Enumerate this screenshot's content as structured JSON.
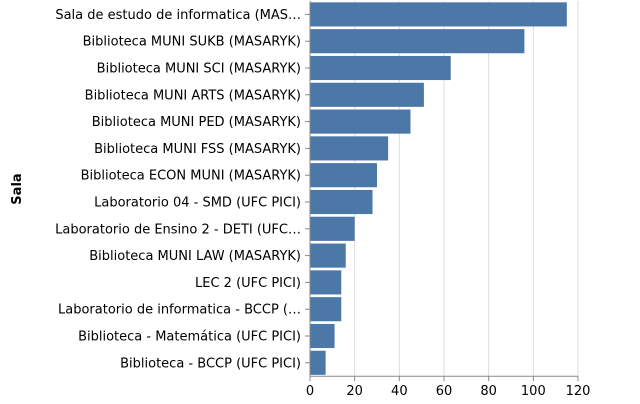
{
  "chart_data": {
    "type": "bar",
    "orientation": "horizontal",
    "ylabel": "Sala",
    "xlabel": "",
    "xlim": [
      0,
      120
    ],
    "x_ticks": [
      0,
      20,
      40,
      60,
      80,
      100,
      120
    ],
    "grid": true,
    "bar_color": "#4c78a8",
    "categories": [
      "Sala de estudo de informatica (MAS…",
      "Biblioteca MUNI SUKB (MASARYK)",
      "Biblioteca MUNI SCI (MASARYK)",
      "Biblioteca MUNI ARTS (MASARYK)",
      "Biblioteca MUNI PED (MASARYK)",
      "Biblioteca MUNI FSS (MASARYK)",
      "Biblioteca ECON MUNI (MASARYK)",
      "Laboratorio 04 - SMD (UFC PICI)",
      "Laboratorio de Ensino 2 - DETI (UFC…",
      "Biblioteca MUNI LAW (MASARYK)",
      "LEC 2 (UFC PICI)",
      "Laboratorio de informatica - BCCP (…",
      "Biblioteca - Matemática (UFC PICI)",
      "Biblioteca - BCCP (UFC PICI)"
    ],
    "values": [
      115,
      96,
      63,
      51,
      45,
      35,
      30,
      28,
      20,
      16,
      14,
      14,
      11,
      7
    ]
  }
}
